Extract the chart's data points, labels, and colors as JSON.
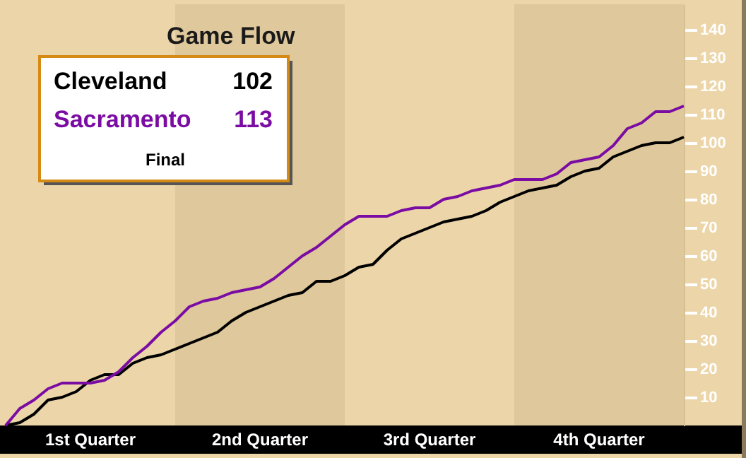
{
  "chart_data": {
    "type": "line",
    "title": "Game Flow",
    "categories": [
      null,
      null,
      null,
      null,
      null,
      null,
      null,
      null,
      null,
      null,
      null,
      null,
      null,
      null,
      null,
      null,
      null,
      null,
      null,
      null,
      null,
      null,
      null,
      null,
      null,
      null,
      null,
      null,
      null,
      null,
      null,
      null,
      null,
      null,
      null,
      null,
      null,
      null,
      null,
      null,
      null,
      null,
      null,
      null,
      null,
      null,
      null,
      null,
      null
    ],
    "series": [
      {
        "name": "Cleveland",
        "color": "#000000",
        "values": [
          0,
          1,
          4,
          9,
          10,
          12,
          16,
          18,
          18,
          22,
          24,
          25,
          27,
          29,
          31,
          33,
          37,
          40,
          42,
          44,
          46,
          47,
          51,
          51,
          53,
          56,
          57,
          62,
          66,
          68,
          70,
          72,
          73,
          74,
          76,
          79,
          81,
          83,
          84,
          85,
          88,
          90,
          91,
          95,
          97,
          99,
          100,
          100,
          102
        ]
      },
      {
        "name": "Sacramento",
        "color": "#7a0ca3",
        "values": [
          0,
          6,
          9,
          13,
          15,
          15,
          15,
          16,
          19,
          24,
          28,
          33,
          37,
          42,
          44,
          45,
          47,
          48,
          49,
          52,
          56,
          60,
          63,
          67,
          71,
          74,
          74,
          74,
          76,
          77,
          77,
          80,
          81,
          83,
          84,
          85,
          87,
          87,
          87,
          89,
          93,
          94,
          95,
          99,
          105,
          107,
          111,
          111,
          113
        ]
      }
    ],
    "ylim": [
      0,
      149
    ],
    "yticks": [
      10,
      20,
      30,
      40,
      50,
      60,
      70,
      80,
      90,
      100,
      110,
      120,
      130,
      140
    ],
    "tick_labels": "y",
    "annotations": [
      "102",
      "113",
      "Final",
      "1st Quarter",
      "2nd Quarter",
      "3rd Quarter",
      "4th Quarter"
    ],
    "line_style": "solid"
  }
}
